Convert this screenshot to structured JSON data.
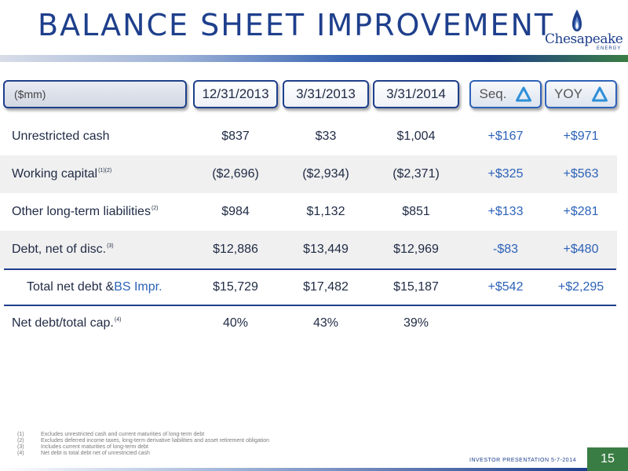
{
  "slide": {
    "title": "BALANCE SHEET IMPROVEMENT",
    "page_number": "15",
    "footer_tag": "INVESTOR PRESENTATION 5-7-2014"
  },
  "logo": {
    "name": "Chesapeake",
    "subtitle": "ENERGY",
    "brand_color": "#1e3f8c",
    "accent_color": "#3a7d44"
  },
  "table": {
    "units_label": "($mm)",
    "columns": [
      "12/31/2013",
      "3/31/2013",
      "3/31/2014"
    ],
    "variance_columns": [
      {
        "label": "Seq.",
        "icon": "delta-icon"
      },
      {
        "label": "YOY",
        "icon": "delta-icon"
      }
    ],
    "rows": [
      {
        "label": "Unrestricted cash",
        "note": "",
        "values": [
          "$837",
          "$33",
          "$1,004"
        ],
        "seq": "+$167",
        "yoy": "+$971"
      },
      {
        "label": "Working capital",
        "note": "(1)(2)",
        "values": [
          "($2,696)",
          "($2,934)",
          "($2,371)"
        ],
        "seq": "+$325",
        "yoy": "+$563"
      },
      {
        "label": "Other long-term liabilities",
        "note": "(2)",
        "values": [
          "$984",
          "$1,132",
          "$851"
        ],
        "seq": "+$133",
        "yoy": "+$281"
      },
      {
        "label": "Debt, net of disc.",
        "note": "(3)",
        "values": [
          "$12,886",
          "$13,449",
          "$12,969"
        ],
        "seq": "-$83",
        "yoy": "+$480"
      }
    ],
    "total_row": {
      "label": "Total net debt & ",
      "label_highlight": "BS Impr.",
      "values": [
        "$15,729",
        "$17,482",
        "$15,187"
      ],
      "seq": "+$542",
      "yoy": "+$2,295"
    },
    "ratio_row": {
      "label": "Net debt/total cap.",
      "note": "(4)",
      "values": [
        "40%",
        "43%",
        "39%"
      ]
    }
  },
  "footnotes": [
    {
      "num": "(1)",
      "text": "Excludes unrestricted cash and current maturities of long-term debt"
    },
    {
      "num": "(2)",
      "text": "Excludes deferred income taxes, long-term derivative liabilities and asset retirement obligation"
    },
    {
      "num": "(3)",
      "text": "Includes current maturities of long-term debt"
    },
    {
      "num": "(4)",
      "text": "Net debt is total debt net of unrestricted cash"
    }
  ]
}
